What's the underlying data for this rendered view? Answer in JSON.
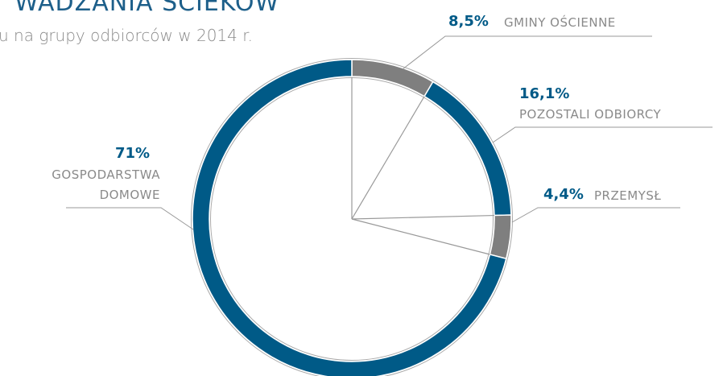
{
  "chart_data": {
    "type": "pie",
    "title": "WADZANIA ŚCIEKÓW",
    "subtitle": "u na grupy odbiorców w 2014 r.",
    "categories": [
      "GMINY OŚCIENNE",
      "POZOSTALI ODBIORCY",
      "PRZEMYSŁ",
      "GOSPODARSTWA DOMOWE"
    ],
    "values": [
      8.5,
      16.1,
      4.4,
      71
    ],
    "value_labels": [
      "8,5%",
      "16,1%",
      "4,4%",
      "71%"
    ],
    "colors": [
      "#7f7f7f",
      "#005a87",
      "#7f7f7f",
      "#005a87"
    ]
  }
}
